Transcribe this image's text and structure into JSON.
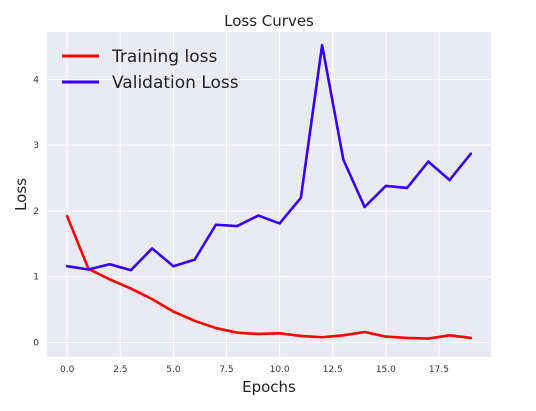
{
  "chart_data": {
    "type": "line",
    "title": "Loss Curves",
    "xlabel": "Epochs",
    "ylabel": "Loss",
    "xlim": [
      -0.95,
      19.95
    ],
    "ylim": [
      -0.22,
      4.72
    ],
    "x_ticks": [
      0.0,
      2.5,
      5.0,
      7.5,
      10.0,
      12.5,
      15.0,
      17.5
    ],
    "x_tick_labels": [
      "0.0",
      "2.5",
      "5.0",
      "7.5",
      "10.0",
      "12.5",
      "15.0",
      "17.5"
    ],
    "y_ticks": [
      0,
      1,
      2,
      3,
      4
    ],
    "y_tick_labels": [
      "0",
      "1",
      "2",
      "3",
      "4"
    ],
    "grid": true,
    "legend_position": "upper-left",
    "x": [
      0,
      1,
      2,
      3,
      4,
      5,
      6,
      7,
      8,
      9,
      10,
      11,
      12,
      13,
      14,
      15,
      16,
      17,
      18,
      19
    ],
    "series": [
      {
        "name": "Training loss",
        "color": "#ff0000",
        "values": [
          1.92,
          1.12,
          0.96,
          0.82,
          0.66,
          0.47,
          0.33,
          0.22,
          0.15,
          0.13,
          0.14,
          0.1,
          0.08,
          0.11,
          0.16,
          0.09,
          0.07,
          0.06,
          0.11,
          0.07
        ]
      },
      {
        "name": "Validation Loss",
        "color": "#3300ff",
        "values": [
          1.16,
          1.11,
          1.19,
          1.1,
          1.43,
          1.16,
          1.26,
          1.79,
          1.77,
          1.93,
          1.81,
          2.2,
          4.52,
          2.78,
          2.06,
          2.38,
          2.35,
          2.75,
          2.47,
          2.87
        ]
      }
    ]
  },
  "colors": {
    "plot_background": "#eaeaf2",
    "grid": "#ffffff"
  }
}
